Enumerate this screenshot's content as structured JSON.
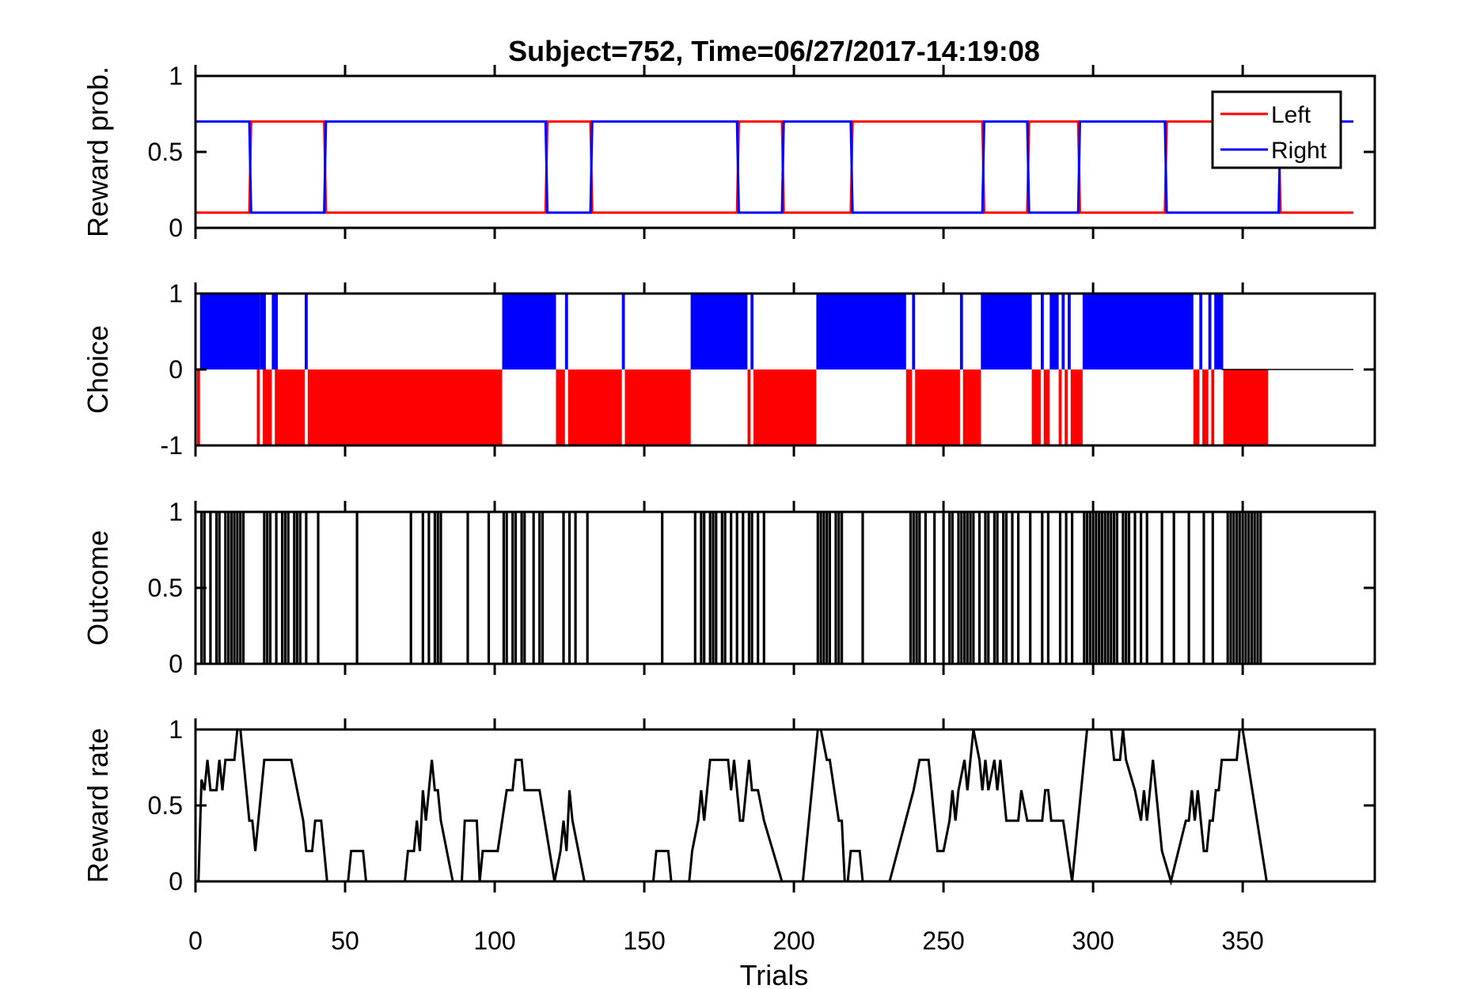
{
  "chart_data": {
    "title": "Subject=752, Time=06/27/2017-14:19:08",
    "xlabel": "Trials",
    "xlim": [
      0,
      387
    ],
    "xticks": [
      0,
      50,
      100,
      150,
      200,
      250,
      300,
      350
    ],
    "n_trials": 386,
    "panels": [
      {
        "id": "reward-prob",
        "type": "line",
        "ylabel": "Reward prob.",
        "ylim": [
          0,
          1
        ],
        "yticks": [
          {
            "value": 0,
            "label": "0"
          },
          {
            "value": 0.5,
            "label": "0.5"
          },
          {
            "value": 1,
            "label": "1"
          }
        ],
        "legend": {
          "placement": "top-right",
          "entries": [
            {
              "name": "Left",
              "color": "#ff0000"
            },
            {
              "name": "Right",
              "color": "#0000ff"
            }
          ]
        },
        "switch_trials": [
          0,
          18,
          43,
          117,
          132,
          181,
          196,
          219,
          263,
          278,
          295,
          324,
          362,
          387
        ],
        "series": [
          {
            "name": "Left",
            "color": "#ff0000",
            "values_by_block": [
              0.1,
              0.7,
              0.1,
              0.7,
              0.1,
              0.7,
              0.1,
              0.7,
              0.1,
              0.7,
              0.1,
              0.7,
              0.1
            ]
          },
          {
            "name": "Right",
            "color": "#0000ff",
            "values_by_block": [
              0.7,
              0.1,
              0.7,
              0.1,
              0.7,
              0.1,
              0.7,
              0.1,
              0.7,
              0.1,
              0.7,
              0.1,
              0.7
            ]
          }
        ]
      },
      {
        "id": "choice",
        "type": "bar",
        "ylabel": "Choice",
        "ylim": [
          -1,
          1
        ],
        "yticks": [
          {
            "value": -1,
            "label": "-1"
          },
          {
            "value": 0,
            "label": "0"
          },
          {
            "value": 1,
            "label": "1"
          }
        ],
        "colors": {
          "right": "#0000ff",
          "left": "#ff0000"
        },
        "right_choice_ranges": [
          [
            2,
            21
          ],
          [
            22,
            23
          ],
          [
            26,
            27
          ],
          [
            37,
            37
          ],
          [
            103,
            120
          ],
          [
            124,
            124
          ],
          [
            143,
            143
          ],
          [
            166,
            184
          ],
          [
            186,
            186
          ],
          [
            208,
            237
          ],
          [
            240,
            240
          ],
          [
            256,
            256
          ],
          [
            263,
            279
          ],
          [
            283,
            283
          ],
          [
            286,
            288
          ],
          [
            290,
            290
          ],
          [
            292,
            292
          ],
          [
            297,
            333
          ],
          [
            336,
            336
          ],
          [
            339,
            339
          ],
          [
            341,
            343
          ]
        ],
        "left_choice_ranges": [
          [
            1,
            1
          ],
          [
            21,
            21
          ],
          [
            23,
            25
          ],
          [
            27,
            36
          ],
          [
            38,
            102
          ],
          [
            121,
            123
          ],
          [
            125,
            142
          ],
          [
            144,
            165
          ],
          [
            185,
            185
          ],
          [
            187,
            207
          ],
          [
            238,
            239
          ],
          [
            241,
            255
          ],
          [
            257,
            262
          ],
          [
            280,
            282
          ],
          [
            284,
            285
          ],
          [
            289,
            289
          ],
          [
            291,
            291
          ],
          [
            293,
            296
          ],
          [
            334,
            335
          ],
          [
            337,
            338
          ],
          [
            340,
            340
          ],
          [
            344,
            358
          ]
        ]
      },
      {
        "id": "outcome",
        "type": "bar",
        "ylabel": "Outcome",
        "ylim": [
          0,
          1
        ],
        "yticks": [
          {
            "value": 0,
            "label": "0"
          },
          {
            "value": 0.5,
            "label": "0.5"
          },
          {
            "value": 1,
            "label": "1"
          }
        ],
        "color": "#000000",
        "rewarded_trials": [
          2,
          3,
          5,
          7,
          8,
          10,
          11,
          12,
          13,
          14,
          15,
          16,
          23,
          24,
          25,
          27,
          29,
          30,
          31,
          33,
          34,
          35,
          37,
          41,
          54,
          72,
          76,
          78,
          80,
          81,
          82,
          91,
          98,
          103,
          104,
          106,
          107,
          109,
          110,
          113,
          115,
          116,
          123,
          125,
          127,
          131,
          156,
          167,
          169,
          170,
          172,
          173,
          174,
          176,
          177,
          179,
          181,
          183,
          185,
          186,
          188,
          190,
          208,
          209,
          210,
          211,
          212,
          214,
          215,
          216,
          223,
          239,
          240,
          241,
          242,
          244,
          247,
          250,
          252,
          253,
          255,
          256,
          257,
          258,
          259,
          260,
          262,
          264,
          265,
          267,
          268,
          270,
          271,
          273,
          275,
          279,
          283,
          285,
          289,
          291,
          293,
          297,
          298,
          299,
          300,
          301,
          302,
          303,
          304,
          305,
          306,
          307,
          308,
          310,
          311,
          312,
          314,
          316,
          318,
          323,
          327,
          332,
          337,
          340,
          345,
          346,
          347,
          348,
          349,
          350,
          351,
          352,
          353,
          354,
          355,
          356
        ]
      },
      {
        "id": "reward-rate",
        "type": "line",
        "ylabel": "Reward rate",
        "ylim": [
          0,
          1
        ],
        "yticks": [
          {
            "value": 0,
            "label": "0"
          },
          {
            "value": 0.5,
            "label": "0.5"
          },
          {
            "value": 1,
            "label": "1"
          }
        ],
        "color": "#000000",
        "points": [
          [
            1,
            0
          ],
          [
            2,
            0.67
          ],
          [
            3,
            0.6
          ],
          [
            4,
            0.8
          ],
          [
            5,
            0.6
          ],
          [
            7,
            0.6
          ],
          [
            8,
            0.8
          ],
          [
            9,
            0.6
          ],
          [
            10,
            0.8
          ],
          [
            13,
            0.8
          ],
          [
            14,
            1
          ],
          [
            15,
            1
          ],
          [
            17,
            0.6
          ],
          [
            18,
            0.4
          ],
          [
            19,
            0.4
          ],
          [
            20,
            0.2
          ],
          [
            21,
            0.4
          ],
          [
            22,
            0.6
          ],
          [
            23,
            0.8
          ],
          [
            32,
            0.8
          ],
          [
            34,
            0.6
          ],
          [
            36,
            0.4
          ],
          [
            37,
            0.2
          ],
          [
            39,
            0.2
          ],
          [
            40,
            0.4
          ],
          [
            42,
            0.4
          ],
          [
            43,
            0.2
          ],
          [
            44,
            0
          ],
          [
            51,
            0
          ],
          [
            52,
            0.2
          ],
          [
            56,
            0.2
          ],
          [
            57,
            0
          ],
          [
            70,
            0
          ],
          [
            71,
            0.2
          ],
          [
            73,
            0.2
          ],
          [
            74,
            0.4
          ],
          [
            75,
            0.2
          ],
          [
            76,
            0.6
          ],
          [
            77,
            0.4
          ],
          [
            78,
            0.6
          ],
          [
            79,
            0.8
          ],
          [
            80,
            0.6
          ],
          [
            81,
            0.6
          ],
          [
            82,
            0.4
          ],
          [
            86,
            0
          ],
          [
            89,
            0
          ],
          [
            90,
            0.4
          ],
          [
            94,
            0.4
          ],
          [
            95,
            0
          ],
          [
            96,
            0.2
          ],
          [
            101,
            0.2
          ],
          [
            104,
            0.6
          ],
          [
            106,
            0.6
          ],
          [
            107,
            0.8
          ],
          [
            109,
            0.8
          ],
          [
            110,
            0.6
          ],
          [
            115,
            0.6
          ],
          [
            120,
            0
          ],
          [
            122,
            0.2
          ],
          [
            123,
            0.4
          ],
          [
            124,
            0.2
          ],
          [
            125,
            0.6
          ],
          [
            126,
            0.4
          ],
          [
            130,
            0
          ],
          [
            153,
            0
          ],
          [
            154,
            0.2
          ],
          [
            158,
            0.2
          ],
          [
            159,
            0
          ],
          [
            165,
            0
          ],
          [
            166,
            0.2
          ],
          [
            168,
            0.4
          ],
          [
            169,
            0.6
          ],
          [
            170,
            0.4
          ],
          [
            172,
            0.8
          ],
          [
            178,
            0.8
          ],
          [
            179,
            0.6
          ],
          [
            180,
            0.8
          ],
          [
            182,
            0.4
          ],
          [
            183,
            0.4
          ],
          [
            184,
            0.6
          ],
          [
            185,
            0.8
          ],
          [
            186,
            0.6
          ],
          [
            188,
            0.6
          ],
          [
            190,
            0.4
          ],
          [
            196,
            0
          ],
          [
            203,
            0
          ],
          [
            208,
            1
          ],
          [
            209,
            1
          ],
          [
            211,
            0.8
          ],
          [
            212,
            0.8
          ],
          [
            215,
            0.4
          ],
          [
            216,
            0.4
          ],
          [
            217,
            0
          ],
          [
            218,
            0
          ],
          [
            219,
            0.2
          ],
          [
            222,
            0.2
          ],
          [
            223,
            0
          ],
          [
            232,
            0
          ],
          [
            240,
            0.6
          ],
          [
            242,
            0.8
          ],
          [
            245,
            0.8
          ],
          [
            246,
            0.6
          ],
          [
            247,
            0.4
          ],
          [
            248,
            0.2
          ],
          [
            250,
            0.2
          ],
          [
            252,
            0.4
          ],
          [
            253,
            0.6
          ],
          [
            254,
            0.4
          ],
          [
            255,
            0.6
          ],
          [
            257,
            0.8
          ],
          [
            258,
            0.6
          ],
          [
            260,
            1
          ],
          [
            262,
            0.8
          ],
          [
            263,
            0.6
          ],
          [
            264,
            0.8
          ],
          [
            265,
            0.6
          ],
          [
            267,
            0.8
          ],
          [
            268,
            0.6
          ],
          [
            269,
            0.8
          ],
          [
            270,
            0.6
          ],
          [
            271,
            0.4
          ],
          [
            275,
            0.4
          ],
          [
            276,
            0.6
          ],
          [
            278,
            0.4
          ],
          [
            283,
            0.4
          ],
          [
            284,
            0.6
          ],
          [
            285,
            0.6
          ],
          [
            286,
            0.4
          ],
          [
            290,
            0.4
          ],
          [
            293,
            0
          ],
          [
            298,
            1
          ],
          [
            306,
            1
          ],
          [
            307,
            0.8
          ],
          [
            309,
            0.8
          ],
          [
            310,
            1
          ],
          [
            311,
            0.8
          ],
          [
            314,
            0.6
          ],
          [
            316,
            0.4
          ],
          [
            317,
            0.6
          ],
          [
            318,
            0.4
          ],
          [
            320,
            0.8
          ],
          [
            323,
            0.2
          ],
          [
            326,
            0
          ],
          [
            331,
            0.4
          ],
          [
            332,
            0.4
          ],
          [
            333,
            0.6
          ],
          [
            334,
            0.4
          ],
          [
            335,
            0.6
          ],
          [
            336,
            0.4
          ],
          [
            337,
            0.2
          ],
          [
            338,
            0.2
          ],
          [
            339,
            0.4
          ],
          [
            340,
            0.4
          ],
          [
            341,
            0.6
          ],
          [
            342,
            0.6
          ],
          [
            343,
            0.8
          ],
          [
            348,
            0.8
          ],
          [
            349,
            1
          ],
          [
            350,
            1
          ],
          [
            358,
            0
          ],
          [
            387,
            0
          ]
        ]
      }
    ]
  }
}
